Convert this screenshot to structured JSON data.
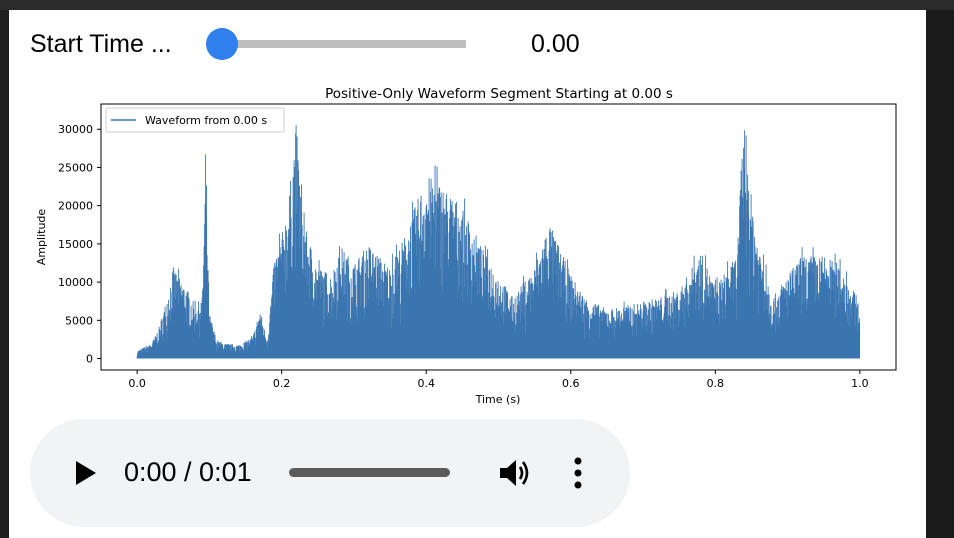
{
  "slider": {
    "label": "Start Time ...",
    "value_text": "0.00",
    "value": 0.0,
    "accent": "#2f80ed"
  },
  "chart_data": {
    "type": "line",
    "title": "Positive-Only Waveform Segment Starting at 0.00 s",
    "xlabel": "Time (s)",
    "ylabel": "Amplitude",
    "xlim": [
      -0.05,
      1.05
    ],
    "ylim": [
      -1500,
      33300
    ],
    "xticks": [
      0.0,
      0.2,
      0.4,
      0.6,
      0.8,
      1.0
    ],
    "xtick_labels": [
      "0.0",
      "0.2",
      "0.4",
      "0.6",
      "0.8",
      "1.0"
    ],
    "yticks": [
      0,
      5000,
      10000,
      15000,
      20000,
      25000,
      30000
    ],
    "ytick_labels": [
      "0",
      "5000",
      "10000",
      "15000",
      "20000",
      "25000",
      "30000"
    ],
    "grid": false,
    "legend_position": "upper left",
    "color": "#3a75b0",
    "series": [
      {
        "name": "Waveform from 0.00 s",
        "x": [
          0.0,
          0.02,
          0.03,
          0.04,
          0.05,
          0.06,
          0.07,
          0.08,
          0.09,
          0.095,
          0.1,
          0.11,
          0.12,
          0.14,
          0.16,
          0.17,
          0.18,
          0.19,
          0.2,
          0.21,
          0.22,
          0.23,
          0.25,
          0.27,
          0.28,
          0.3,
          0.32,
          0.35,
          0.37,
          0.4,
          0.42,
          0.45,
          0.48,
          0.5,
          0.52,
          0.55,
          0.57,
          0.6,
          0.62,
          0.65,
          0.68,
          0.7,
          0.72,
          0.75,
          0.78,
          0.8,
          0.83,
          0.84,
          0.85,
          0.86,
          0.88,
          0.9,
          0.92,
          0.95,
          0.97,
          1.0
        ],
        "y": [
          1000,
          2000,
          4000,
          7500,
          12000,
          10500,
          9000,
          7000,
          8000,
          25500,
          6000,
          2500,
          2000,
          1800,
          2800,
          6500,
          2500,
          13000,
          16000,
          21000,
          31000,
          18000,
          12000,
          11000,
          15000,
          12500,
          15000,
          12000,
          16000,
          24000,
          23000,
          20000,
          14000,
          11000,
          8000,
          12000,
          18000,
          11000,
          8000,
          6500,
          7000,
          7500,
          8000,
          9000,
          14000,
          9500,
          13500,
          33000,
          21000,
          15000,
          8000,
          11000,
          13500,
          13500,
          12500,
          7500
        ]
      }
    ]
  },
  "audio": {
    "time_text": "0:00 / 0:01",
    "progress": 0.0
  },
  "icons": {
    "play": "play-icon",
    "volume": "volume-icon",
    "more": "more-vert-icon"
  }
}
